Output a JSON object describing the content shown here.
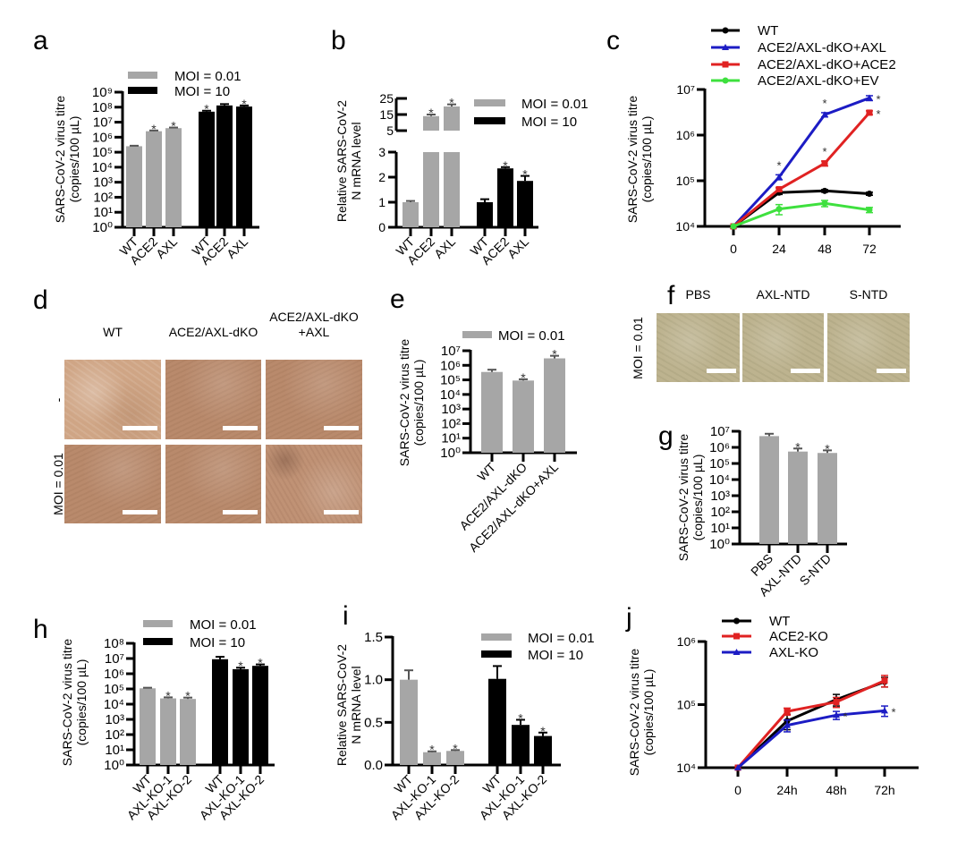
{
  "chart_data": [
    {
      "panel": "a",
      "type": "bar",
      "yscale": "log",
      "ylim": [
        1,
        1000000000
      ],
      "yticks": [
        1,
        10,
        100,
        1000,
        10000,
        100000,
        1000000,
        10000000,
        100000000,
        1000000000
      ],
      "ytick_labels": [
        "10⁰",
        "10¹",
        "10²",
        "10³",
        "10⁴",
        "10⁵",
        "10⁶",
        "10⁷",
        "10⁸",
        "10⁹"
      ],
      "ylabel": [
        "SARS-CoV-2 virus titre",
        "(copies/100 µL)"
      ],
      "series": [
        {
          "name": "MOI = 0.01",
          "color": "#a6a6a6",
          "categories": [
            "WT",
            "ACE2",
            "AXL"
          ],
          "values": [
            250000,
            2500000,
            4000000
          ],
          "errors": [
            20000,
            300000,
            400000
          ],
          "significant": [
            false,
            true,
            true
          ]
        },
        {
          "name": "MOI = 10",
          "color": "#000000",
          "categories": [
            "WT",
            "ACE2",
            "AXL"
          ],
          "values": [
            50000000,
            130000000,
            110000000
          ],
          "errors": [
            8000000,
            30000000,
            20000000
          ],
          "significant": [
            true,
            false,
            true
          ]
        }
      ]
    },
    {
      "panel": "b",
      "type": "bar",
      "yscale": "linear-broken",
      "ylim_lower": [
        0,
        3
      ],
      "ylim_upper": [
        5,
        25
      ],
      "yticks_lower": [
        0,
        1,
        2,
        3
      ],
      "yticks_upper": [
        5,
        15,
        25
      ],
      "ytick_labels_lower": [
        "0",
        "1",
        "2",
        "3"
      ],
      "ytick_labels_upper": [
        "5",
        "15",
        "25"
      ],
      "ylabel": [
        "Relative SARS-CoV-2",
        "N mRNA level"
      ],
      "series": [
        {
          "name": "MOI = 0.01",
          "color": "#a6a6a6",
          "categories": [
            "WT",
            "ACE2",
            "AXL"
          ],
          "values": [
            1.0,
            14,
            20
          ],
          "errors": [
            0.05,
            1.0,
            1.3
          ],
          "significant": [
            false,
            true,
            true
          ]
        },
        {
          "name": "MOI = 10",
          "color": "#000000",
          "categories": [
            "WT",
            "ACE2",
            "AXL"
          ],
          "values": [
            1.0,
            2.35,
            1.85
          ],
          "errors": [
            0.12,
            0.05,
            0.2
          ],
          "significant": [
            false,
            true,
            true
          ]
        }
      ]
    },
    {
      "panel": "c",
      "type": "line",
      "yscale": "log",
      "ylim": [
        10000,
        10000000
      ],
      "yticks": [
        10000,
        100000,
        1000000,
        10000000
      ],
      "ytick_labels": [
        "10⁴",
        "10⁵",
        "10⁶",
        "10⁷"
      ],
      "x": [
        0,
        24,
        48,
        72
      ],
      "xtick_labels": [
        "0",
        "24",
        "48",
        "72"
      ],
      "ylabel": [
        "SARS-CoV-2 virus titre",
        "(copies/100 µL)"
      ],
      "series": [
        {
          "name": "WT",
          "color": "#000000",
          "marker": "circle",
          "y": [
            10000,
            55000,
            60000,
            52000
          ],
          "errors": [
            0,
            5000,
            4000,
            4000
          ],
          "significant": [
            false,
            false,
            false,
            false
          ]
        },
        {
          "name": "ACE2/AXL-dKO+AXL",
          "color": "#1c1cc4",
          "marker": "triangle",
          "y": [
            10000,
            120000,
            2800000,
            6500000
          ],
          "errors": [
            0,
            15000,
            300000,
            800000
          ],
          "significant": [
            false,
            true,
            true,
            true
          ]
        },
        {
          "name": "ACE2/AXL-dKO+ACE2",
          "color": "#e02222",
          "marker": "square",
          "y": [
            10000,
            65000,
            240000,
            3100000
          ],
          "errors": [
            0,
            5000,
            30000,
            300000
          ],
          "significant": [
            false,
            false,
            true,
            true
          ]
        },
        {
          "name": "ACE2/AXL-dKO+EV",
          "color": "#3ee03e",
          "marker": "circle",
          "y": [
            10000,
            24000,
            32000,
            23000
          ],
          "errors": [
            0,
            6000,
            5000,
            3000
          ],
          "significant": [
            false,
            false,
            false,
            false
          ]
        }
      ]
    },
    {
      "panel": "e",
      "type": "bar",
      "yscale": "log",
      "ylim": [
        1,
        10000000
      ],
      "yticks": [
        1,
        10,
        100,
        1000,
        10000,
        100000,
        1000000,
        10000000
      ],
      "ytick_labels": [
        "10⁰",
        "10¹",
        "10²",
        "10³",
        "10⁴",
        "10⁵",
        "10⁶",
        "10⁷"
      ],
      "ylabel": [
        "SARS-CoV-2 virus titre",
        "(copies/100 µL)"
      ],
      "series": [
        {
          "name": "MOI = 0.01",
          "color": "#a6a6a6",
          "categories": [
            "WT",
            "ACE2/AXL-dKO",
            "ACE2/AXL-dKO+AXL"
          ],
          "values": [
            350000,
            90000,
            3000000
          ],
          "errors": [
            150000,
            20000,
            1500000
          ],
          "significant": [
            false,
            true,
            true
          ]
        }
      ]
    },
    {
      "panel": "g",
      "type": "bar",
      "yscale": "log",
      "ylim": [
        1,
        10000000
      ],
      "yticks": [
        1,
        10,
        100,
        1000,
        10000,
        100000,
        1000000,
        10000000
      ],
      "ytick_labels": [
        "10⁰",
        "10¹",
        "10²",
        "10³",
        "10⁴",
        "10⁵",
        "10⁶",
        "10⁷"
      ],
      "ylabel": [
        "SARS-CoV-2 virus titre",
        "(copies/100 µL)"
      ],
      "series": [
        {
          "color": "#a6a6a6",
          "categories": [
            "PBS",
            "AXL-NTD",
            "S-NTD"
          ],
          "values": [
            5000000,
            550000,
            450000
          ],
          "errors": [
            2000000,
            300000,
            200000
          ],
          "significant": [
            false,
            true,
            true
          ]
        }
      ]
    },
    {
      "panel": "h",
      "type": "bar",
      "yscale": "log",
      "ylim": [
        1,
        100000000
      ],
      "yticks": [
        1,
        10,
        100,
        1000,
        10000,
        100000,
        1000000,
        10000000,
        100000000
      ],
      "ytick_labels": [
        "10⁰",
        "10¹",
        "10²",
        "10³",
        "10⁴",
        "10⁵",
        "10⁶",
        "10⁷",
        "10⁸"
      ],
      "ylabel": [
        "SARS-CoV-2 virus titre",
        "(copies/100 µL)"
      ],
      "series": [
        {
          "name": "MOI = 0.01",
          "color": "#a6a6a6",
          "categories": [
            "WT",
            "AXL-KO-1",
            "AXL-KO-2"
          ],
          "values": [
            110000,
            24000,
            22000
          ],
          "errors": [
            10000,
            4000,
            5000
          ],
          "significant": [
            false,
            true,
            true
          ]
        },
        {
          "name": "MOI = 10",
          "color": "#000000",
          "categories": [
            "WT",
            "AXL-KO-1",
            "AXL-KO-2"
          ],
          "values": [
            9000000,
            2000000,
            3300000
          ],
          "errors": [
            4000000,
            500000,
            800000
          ],
          "significant": [
            false,
            true,
            true
          ]
        }
      ]
    },
    {
      "panel": "i",
      "type": "bar",
      "yscale": "linear",
      "ylim": [
        0,
        1.5
      ],
      "yticks": [
        0,
        0.5,
        1.0,
        1.5
      ],
      "ytick_labels": [
        "0.0",
        "0.5",
        "1.0",
        "1.5"
      ],
      "ylabel": [
        "Relative SARS-CoV-2",
        "N mRNA level"
      ],
      "series": [
        {
          "name": "MOI = 0.01",
          "color": "#a6a6a6",
          "categories": [
            "WT",
            "AXL-KO-1",
            "AXL-KO-2"
          ],
          "values": [
            1.0,
            0.15,
            0.165
          ],
          "errors": [
            0.11,
            0.01,
            0.01
          ],
          "significant": [
            false,
            true,
            true
          ]
        },
        {
          "name": "MOI = 10",
          "color": "#000000",
          "categories": [
            "WT",
            "AXL-KO-1",
            "AXL-KO-2"
          ],
          "values": [
            1.01,
            0.47,
            0.34
          ],
          "errors": [
            0.15,
            0.06,
            0.04
          ],
          "significant": [
            false,
            true,
            true
          ]
        }
      ]
    },
    {
      "panel": "j",
      "type": "line",
      "yscale": "log",
      "ylim": [
        10000,
        1000000
      ],
      "yticks": [
        10000,
        100000,
        1000000
      ],
      "ytick_labels": [
        "10⁴",
        "10⁵",
        "10⁶"
      ],
      "x": [
        0,
        24,
        48,
        72
      ],
      "xtick_labels": [
        "0",
        "24h",
        "48h",
        "72h"
      ],
      "ylabel": [
        "SARS-CoV-2 virus titre",
        "(copies/100 µL)"
      ],
      "series": [
        {
          "name": "WT",
          "color": "#000000",
          "marker": "circle",
          "y": [
            10000,
            55000,
            120000,
            230000
          ],
          "errors": [
            0,
            15000,
            25000,
            40000
          ],
          "significant": [
            false,
            false,
            false,
            false
          ]
        },
        {
          "name": "ACE2-KO",
          "color": "#e02222",
          "marker": "square",
          "y": [
            10000,
            78000,
            110000,
            240000
          ],
          "errors": [
            0,
            10000,
            20000,
            50000
          ],
          "significant": [
            false,
            false,
            false,
            false
          ]
        },
        {
          "name": "AXL-KO",
          "color": "#1c1cc4",
          "marker": "triangle",
          "y": [
            10000,
            47000,
            68000,
            80000
          ],
          "errors": [
            0,
            10000,
            10000,
            15000
          ],
          "significant": [
            false,
            false,
            true,
            true
          ]
        }
      ]
    }
  ],
  "micrographs": [
    {
      "panel": "d",
      "columns": [
        [
          "WT"
        ],
        [
          "ACE2/AXL-dKO"
        ],
        [
          "ACE2/AXL-dKO",
          "+AXL"
        ]
      ],
      "rows": [
        "-",
        "MOI = 0.01"
      ]
    },
    {
      "panel": "f",
      "columns": [
        [
          "PBS"
        ],
        [
          "AXL-NTD"
        ],
        [
          "S-NTD"
        ]
      ],
      "rows": [
        "MOI = 0.01"
      ]
    }
  ],
  "significance_mark": "*"
}
